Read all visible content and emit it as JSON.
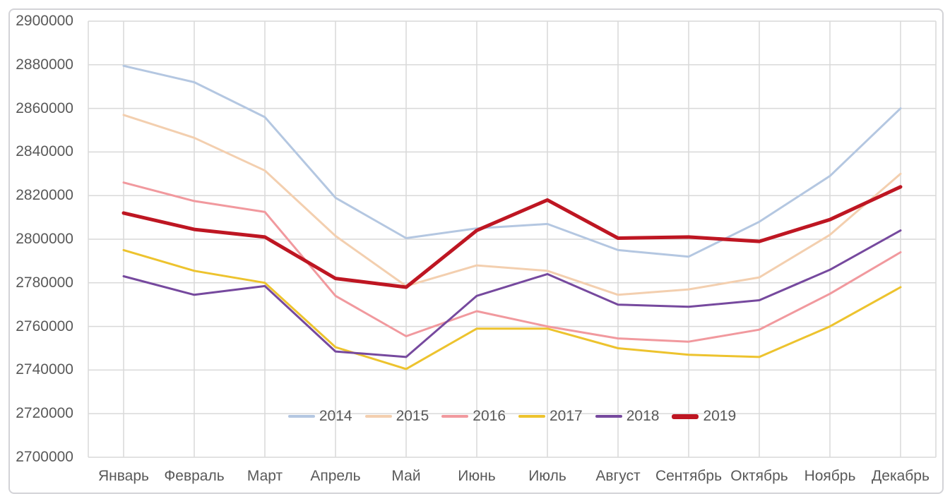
{
  "chart_data": {
    "type": "line",
    "title": "",
    "categories": [
      "Январь",
      "Февраль",
      "Март",
      "Апрель",
      "Май",
      "Июнь",
      "Июль",
      "Август",
      "Сентябрь",
      "Октябрь",
      "Ноябрь",
      "Декабрь"
    ],
    "series": [
      {
        "name": "2014",
        "color": "#B4C7E1",
        "line_width": 3,
        "values": [
          2879500,
          2872000,
          2856000,
          2819000,
          2800500,
          2805000,
          2807000,
          2795000,
          2792000,
          2808000,
          2829000,
          2860000
        ]
      },
      {
        "name": "2015",
        "color": "#F3CFAF",
        "line_width": 3,
        "values": [
          2857000,
          2846500,
          2831500,
          2801500,
          2778500,
          2788000,
          2785500,
          2774500,
          2777000,
          2782500,
          2802000,
          2830000
        ]
      },
      {
        "name": "2016",
        "color": "#F1999E",
        "line_width": 3,
        "values": [
          2826000,
          2817500,
          2812500,
          2774000,
          2755500,
          2767000,
          2760000,
          2754500,
          2753000,
          2758500,
          2775000,
          2794000
        ]
      },
      {
        "name": "2017",
        "color": "#EDC32E",
        "line_width": 3,
        "values": [
          2795000,
          2785500,
          2780000,
          2750500,
          2740500,
          2759000,
          2759000,
          2750000,
          2747000,
          2746000,
          2760000,
          2778000
        ]
      },
      {
        "name": "2018",
        "color": "#76499E",
        "line_width": 3,
        "values": [
          2783000,
          2774500,
          2778500,
          2748500,
          2746000,
          2774000,
          2784000,
          2770000,
          2769000,
          2772000,
          2786000,
          2804000
        ]
      },
      {
        "name": "2019",
        "color": "#BE1622",
        "line_width": 5,
        "values": [
          2812000,
          2804500,
          2801000,
          2782000,
          2778000,
          2804000,
          2818000,
          2800500,
          2801000,
          2799000,
          2809000,
          2824000
        ]
      }
    ],
    "y_axis": {
      "min": 2700000,
      "max": 2900000,
      "step": 20000,
      "tick_labels": [
        "2900000",
        "2880000",
        "2860000",
        "2840000",
        "2820000",
        "2800000",
        "2780000",
        "2760000",
        "2740000",
        "2720000",
        "2700000"
      ]
    },
    "x_axis": {
      "tick_labels": [
        "Январь",
        "Февраль",
        "Март",
        "Апрель",
        "Май",
        "Июнь",
        "Июль",
        "Август",
        "Сентябрь",
        "Октябрь",
        "Ноябрь",
        "Декабрь"
      ]
    },
    "legend": {
      "position": "bottom-inside",
      "entries": [
        "2014",
        "2015",
        "2016",
        "2017",
        "2018",
        "2019"
      ]
    },
    "grid": {
      "horizontal": true,
      "vertical": true
    },
    "colors": {
      "grid": "#D9D9D9",
      "text": "#595959",
      "frame_border": "#D3D3D7",
      "background": "#FFFFFF"
    }
  }
}
